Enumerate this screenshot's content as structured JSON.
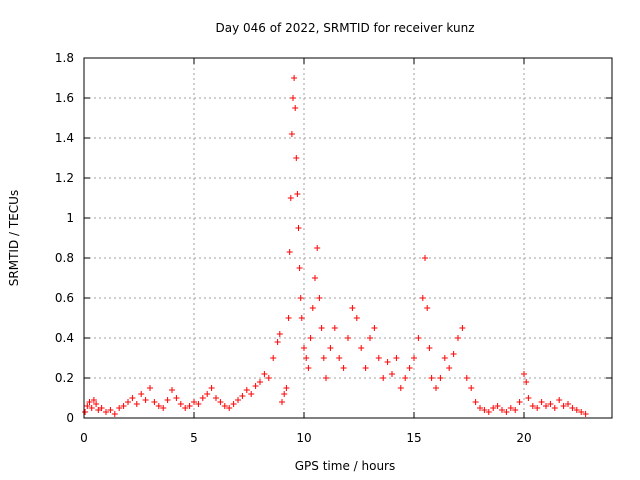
{
  "chart_data": {
    "type": "scatter",
    "title": "Day 046 of 2022, SRMTID for receiver kunz",
    "xlabel": "GPS time / hours",
    "ylabel": "SRMTID / TECUs",
    "xlim": [
      0,
      24
    ],
    "ylim": [
      0,
      1.8
    ],
    "xticks": [
      0,
      5,
      10,
      15,
      20
    ],
    "xtick_labels": [
      "0",
      "5",
      "10",
      "15",
      "20"
    ],
    "yticks": [
      0,
      0.2,
      0.4,
      0.6,
      0.8,
      1,
      1.2,
      1.4,
      1.6,
      1.8
    ],
    "ytick_labels": [
      "0",
      "0.2",
      "0.4",
      "0.6",
      "0.8",
      "1",
      "1.2",
      "1.4",
      "1.6",
      "1.8"
    ],
    "grid": true,
    "marker": "plus",
    "color": "#ff0000",
    "series": [
      {
        "name": "SRMTID",
        "points": [
          [
            0.05,
            0.03
          ],
          [
            0.15,
            0.06
          ],
          [
            0.25,
            0.08
          ],
          [
            0.35,
            0.05
          ],
          [
            0.45,
            0.09
          ],
          [
            0.55,
            0.07
          ],
          [
            0.65,
            0.04
          ],
          [
            0.8,
            0.05
          ],
          [
            1.0,
            0.03
          ],
          [
            1.2,
            0.04
          ],
          [
            1.4,
            0.02
          ],
          [
            1.6,
            0.05
          ],
          [
            1.8,
            0.06
          ],
          [
            2.0,
            0.08
          ],
          [
            2.2,
            0.1
          ],
          [
            2.4,
            0.07
          ],
          [
            2.6,
            0.12
          ],
          [
            2.8,
            0.09
          ],
          [
            3.0,
            0.15
          ],
          [
            3.2,
            0.08
          ],
          [
            3.4,
            0.06
          ],
          [
            3.6,
            0.05
          ],
          [
            3.8,
            0.09
          ],
          [
            4.0,
            0.14
          ],
          [
            4.2,
            0.1
          ],
          [
            4.4,
            0.07
          ],
          [
            4.6,
            0.05
          ],
          [
            4.8,
            0.06
          ],
          [
            5.0,
            0.08
          ],
          [
            5.2,
            0.07
          ],
          [
            5.4,
            0.1
          ],
          [
            5.6,
            0.12
          ],
          [
            5.8,
            0.15
          ],
          [
            6.0,
            0.1
          ],
          [
            6.2,
            0.08
          ],
          [
            6.4,
            0.06
          ],
          [
            6.6,
            0.05
          ],
          [
            6.8,
            0.07
          ],
          [
            7.0,
            0.09
          ],
          [
            7.2,
            0.11
          ],
          [
            7.4,
            0.14
          ],
          [
            7.6,
            0.12
          ],
          [
            7.8,
            0.16
          ],
          [
            8.0,
            0.18
          ],
          [
            8.2,
            0.22
          ],
          [
            8.4,
            0.2
          ],
          [
            8.6,
            0.3
          ],
          [
            8.8,
            0.38
          ],
          [
            8.9,
            0.42
          ],
          [
            9.0,
            0.08
          ],
          [
            9.1,
            0.12
          ],
          [
            9.2,
            0.15
          ],
          [
            9.3,
            0.5
          ],
          [
            9.35,
            0.83
          ],
          [
            9.4,
            1.1
          ],
          [
            9.45,
            1.42
          ],
          [
            9.5,
            1.6
          ],
          [
            9.55,
            1.7
          ],
          [
            9.6,
            1.55
          ],
          [
            9.65,
            1.3
          ],
          [
            9.7,
            1.12
          ],
          [
            9.75,
            0.95
          ],
          [
            9.8,
            0.75
          ],
          [
            9.85,
            0.6
          ],
          [
            9.9,
            0.5
          ],
          [
            10.0,
            0.35
          ],
          [
            10.1,
            0.3
          ],
          [
            10.2,
            0.25
          ],
          [
            10.3,
            0.4
          ],
          [
            10.4,
            0.55
          ],
          [
            10.5,
            0.7
          ],
          [
            10.6,
            0.85
          ],
          [
            10.7,
            0.6
          ],
          [
            10.8,
            0.45
          ],
          [
            10.9,
            0.3
          ],
          [
            11.0,
            0.2
          ],
          [
            11.2,
            0.35
          ],
          [
            11.4,
            0.45
          ],
          [
            11.6,
            0.3
          ],
          [
            11.8,
            0.25
          ],
          [
            12.0,
            0.4
          ],
          [
            12.2,
            0.55
          ],
          [
            12.4,
            0.5
          ],
          [
            12.6,
            0.35
          ],
          [
            12.8,
            0.25
          ],
          [
            13.0,
            0.4
          ],
          [
            13.2,
            0.45
          ],
          [
            13.4,
            0.3
          ],
          [
            13.6,
            0.2
          ],
          [
            13.8,
            0.28
          ],
          [
            14.0,
            0.22
          ],
          [
            14.2,
            0.3
          ],
          [
            14.4,
            0.15
          ],
          [
            14.6,
            0.2
          ],
          [
            14.8,
            0.25
          ],
          [
            15.0,
            0.3
          ],
          [
            15.2,
            0.4
          ],
          [
            15.4,
            0.6
          ],
          [
            15.5,
            0.8
          ],
          [
            15.6,
            0.55
          ],
          [
            15.7,
            0.35
          ],
          [
            15.8,
            0.2
          ],
          [
            16.0,
            0.15
          ],
          [
            16.2,
            0.2
          ],
          [
            16.4,
            0.3
          ],
          [
            16.6,
            0.25
          ],
          [
            16.8,
            0.32
          ],
          [
            17.0,
            0.4
          ],
          [
            17.2,
            0.45
          ],
          [
            17.4,
            0.2
          ],
          [
            17.6,
            0.15
          ],
          [
            17.8,
            0.08
          ],
          [
            18.0,
            0.05
          ],
          [
            18.2,
            0.04
          ],
          [
            18.4,
            0.03
          ],
          [
            18.6,
            0.05
          ],
          [
            18.8,
            0.06
          ],
          [
            19.0,
            0.04
          ],
          [
            19.2,
            0.03
          ],
          [
            19.4,
            0.05
          ],
          [
            19.6,
            0.04
          ],
          [
            19.8,
            0.08
          ],
          [
            20.0,
            0.22
          ],
          [
            20.1,
            0.18
          ],
          [
            20.2,
            0.1
          ],
          [
            20.4,
            0.06
          ],
          [
            20.6,
            0.05
          ],
          [
            20.8,
            0.08
          ],
          [
            21.0,
            0.06
          ],
          [
            21.2,
            0.07
          ],
          [
            21.4,
            0.05
          ],
          [
            21.6,
            0.09
          ],
          [
            21.8,
            0.06
          ],
          [
            22.0,
            0.07
          ],
          [
            22.2,
            0.05
          ],
          [
            22.4,
            0.04
          ],
          [
            22.6,
            0.03
          ],
          [
            22.8,
            0.02
          ]
        ]
      }
    ]
  }
}
